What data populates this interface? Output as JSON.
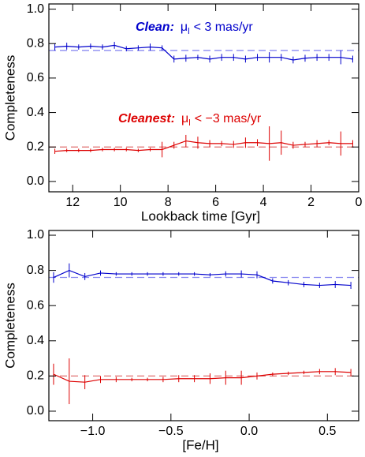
{
  "chart_data": [
    {
      "type": "line",
      "x_label": "Lookback time [Gyr]",
      "y_label": "Completeness",
      "xlim": [
        13,
        0
      ],
      "ylim": [
        -0.06,
        1.03
      ],
      "xticks": [
        12,
        10,
        8,
        6,
        4,
        2,
        0
      ],
      "yticks": [
        {
          "value": 0,
          "label": "0.0"
        },
        0.2,
        0.4,
        0.6,
        0.8,
        {
          "value": 1,
          "label": "1.0"
        }
      ],
      "x": [
        12.75,
        12.25,
        11.75,
        11.25,
        10.75,
        10.25,
        9.75,
        9.25,
        8.75,
        8.25,
        7.75,
        7.25,
        6.75,
        6.25,
        5.75,
        5.25,
        4.75,
        4.25,
        3.75,
        3.25,
        2.75,
        2.25,
        1.75,
        1.25,
        0.75,
        0.25
      ],
      "series": [
        {
          "name": "Clean:",
          "symbol": "μ",
          "subscript": "l",
          "condition": "< 3 mas/yr",
          "color": "#0000cc",
          "reference": 0.76,
          "reference_color": "#8a8af0",
          "values": [
            0.78,
            0.785,
            0.78,
            0.785,
            0.78,
            0.79,
            0.77,
            0.775,
            0.78,
            0.775,
            0.71,
            0.715,
            0.72,
            0.71,
            0.72,
            0.72,
            0.71,
            0.72,
            0.72,
            0.72,
            0.705,
            0.715,
            0.72,
            0.72,
            0.72,
            0.71
          ],
          "errors": [
            0.02,
            0.02,
            0.015,
            0.015,
            0.015,
            0.02,
            0.015,
            0.015,
            0.02,
            0.015,
            0.02,
            0.02,
            0.015,
            0.02,
            0.02,
            0.02,
            0.02,
            0.02,
            0.03,
            0.02,
            0.02,
            0.02,
            0.02,
            0.02,
            0.04,
            0.02
          ]
        },
        {
          "name": "Cleanest:",
          "symbol": "μ",
          "subscript": "l",
          "condition": "< −3 mas/yr",
          "color": "#dd0000",
          "reference": 0.2,
          "reference_color": "#e07070",
          "values": [
            0.175,
            0.18,
            0.18,
            0.18,
            0.185,
            0.185,
            0.185,
            0.18,
            0.185,
            0.185,
            0.21,
            0.235,
            0.225,
            0.22,
            0.22,
            0.215,
            0.225,
            0.225,
            0.22,
            0.225,
            0.21,
            0.215,
            0.22,
            0.225,
            0.22,
            0.22
          ],
          "errors": [
            0.015,
            0.01,
            0.01,
            0.01,
            0.01,
            0.01,
            0.01,
            0.01,
            0.01,
            0.045,
            0.02,
            0.035,
            0.035,
            0.02,
            0.015,
            0.02,
            0.03,
            0.02,
            0.1,
            0.07,
            0.02,
            0.015,
            0.02,
            0.015,
            0.07,
            0.02
          ]
        }
      ]
    },
    {
      "type": "line",
      "x_label": "[Fe/H]",
      "y_label": "Completeness",
      "xlim": [
        -1.28,
        0.7
      ],
      "ylim": [
        -0.054,
        1.027
      ],
      "xticks": [
        {
          "value": -1,
          "label": "−1.0"
        },
        {
          "value": -0.5,
          "label": "−0.5"
        },
        {
          "value": 0,
          "label": "0.0"
        },
        0.5
      ],
      "yticks": [
        {
          "value": 0,
          "label": "0.0"
        },
        0.2,
        0.4,
        0.6,
        0.8,
        {
          "value": 1,
          "label": "1.0"
        }
      ],
      "x": [
        -1.25,
        -1.15,
        -1.05,
        -0.95,
        -0.85,
        -0.75,
        -0.65,
        -0.55,
        -0.45,
        -0.35,
        -0.25,
        -0.15,
        -0.05,
        0.05,
        0.15,
        0.25,
        0.35,
        0.45,
        0.55,
        0.65
      ],
      "series": [
        {
          "color": "#0000cc",
          "reference": 0.76,
          "reference_color": "#8a8af0",
          "values": [
            0.76,
            0.8,
            0.765,
            0.785,
            0.78,
            0.78,
            0.78,
            0.78,
            0.78,
            0.78,
            0.775,
            0.78,
            0.78,
            0.775,
            0.74,
            0.73,
            0.72,
            0.715,
            0.72,
            0.715
          ],
          "errors": [
            0.03,
            0.04,
            0.02,
            0.015,
            0.01,
            0.01,
            0.01,
            0.01,
            0.01,
            0.01,
            0.01,
            0.015,
            0.02,
            0.02,
            0.015,
            0.015,
            0.015,
            0.015,
            0.02,
            0.02
          ]
        },
        {
          "color": "#dd0000",
          "reference": 0.2,
          "reference_color": "#e07070",
          "values": [
            0.21,
            0.17,
            0.165,
            0.18,
            0.18,
            0.18,
            0.18,
            0.18,
            0.185,
            0.185,
            0.185,
            0.19,
            0.19,
            0.2,
            0.21,
            0.215,
            0.22,
            0.225,
            0.225,
            0.22
          ],
          "errors": [
            0.06,
            0.13,
            0.04,
            0.02,
            0.015,
            0.01,
            0.01,
            0.015,
            0.02,
            0.02,
            0.03,
            0.04,
            0.04,
            0.02,
            0.01,
            0.01,
            0.01,
            0.015,
            0.02,
            0.02
          ]
        }
      ]
    }
  ]
}
